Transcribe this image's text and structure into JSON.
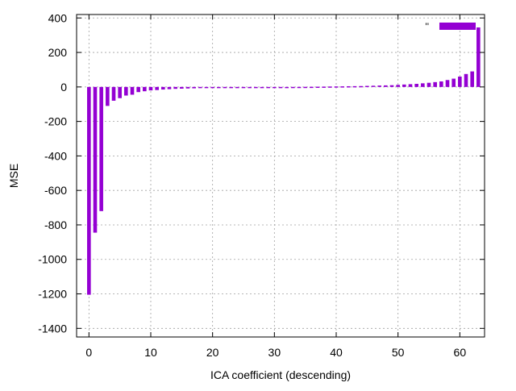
{
  "chart_data": {
    "type": "bar",
    "title": "",
    "xlabel": "ICA coefficient (descending)",
    "ylabel": "MSE",
    "xlim": [
      -2,
      64
    ],
    "ylim": [
      -1450,
      420
    ],
    "xticks": [
      0,
      10,
      20,
      30,
      40,
      50,
      60
    ],
    "yticks": [
      400,
      200,
      0,
      -200,
      -400,
      -600,
      -800,
      -1000,
      -1200,
      -1400
    ],
    "grid": true,
    "legend_position": "top-right",
    "series": [
      {
        "name": "''",
        "color": "#9400d3",
        "x": [
          0,
          1,
          2,
          3,
          4,
          5,
          6,
          7,
          8,
          9,
          10,
          11,
          12,
          13,
          14,
          15,
          16,
          17,
          18,
          19,
          20,
          21,
          22,
          23,
          24,
          25,
          26,
          27,
          28,
          29,
          30,
          31,
          32,
          33,
          34,
          35,
          36,
          37,
          38,
          39,
          40,
          41,
          42,
          43,
          44,
          45,
          46,
          47,
          48,
          49,
          50,
          51,
          52,
          53,
          54,
          55,
          56,
          57,
          58,
          59,
          60,
          61,
          62,
          63
        ],
        "values": [
          -1205,
          -845,
          -720,
          -110,
          -80,
          -65,
          -50,
          -45,
          -30,
          -25,
          -20,
          -18,
          -15,
          -13,
          -11,
          -10,
          -9,
          -8,
          -7,
          -6,
          -5,
          -4,
          -3.5,
          -3,
          -2.5,
          -2,
          -1.5,
          -1,
          -1,
          -0.5,
          -0.5,
          -0.3,
          -0.2,
          0.2,
          0.4,
          0.6,
          1,
          1.5,
          2,
          2.5,
          3,
          3.5,
          4,
          4.5,
          5,
          6,
          7,
          8,
          9,
          10,
          12,
          14,
          16,
          18,
          21,
          24,
          28,
          32,
          40,
          48,
          60,
          75,
          90,
          345
        ]
      }
    ]
  }
}
